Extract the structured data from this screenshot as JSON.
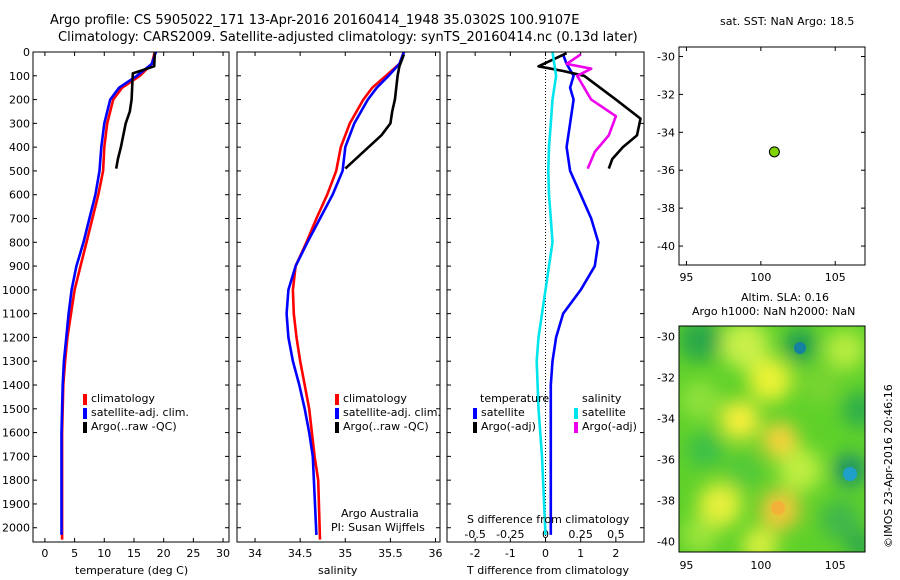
{
  "header": {
    "title": "Argo profile: CS 5905022_171 13-Apr-2016 20160414_1948 35.0302S 100.9107E",
    "subtitle": "Climatology: CARS2009. Satellite-adjusted climatology: synTS_20160414.nc (0.13d later)"
  },
  "watermark": "©IMOS 23-Apr-2016 20:46:16",
  "credit": {
    "line1": "Argo Australia",
    "line2": "PI: Susan Wijffels"
  },
  "colors": {
    "red": "#ff0000",
    "blue": "#0000ff",
    "black": "#000000",
    "cyan": "#00e5ee",
    "magenta": "#ee00ee",
    "float_marker": "#7fd400"
  },
  "chart_data": [
    {
      "type": "line",
      "id": "temperature",
      "xlabel": "temperature (deg C)",
      "ylabel": "",
      "xlim": [
        -2,
        31
      ],
      "ylim": [
        2060,
        0
      ],
      "xticks": [
        0,
        5,
        10,
        15,
        20,
        25,
        30
      ],
      "yticks": [
        0,
        100,
        200,
        300,
        400,
        500,
        600,
        700,
        800,
        900,
        1000,
        1100,
        1200,
        1300,
        1400,
        1500,
        1600,
        1700,
        1800,
        1900,
        2000
      ],
      "legend": [
        {
          "label": "climatology",
          "color": "#ff0000"
        },
        {
          "label": "satellite-adj. clim.",
          "color": "#0000ff"
        },
        {
          "label": "Argo(..raw -QC)",
          "color": "#000000"
        }
      ],
      "series": [
        {
          "name": "climatology",
          "color": "#ff0000",
          "x": [
            18.5,
            18,
            16,
            13,
            11.5,
            10.5,
            10,
            9.8,
            9,
            8,
            7,
            6,
            5,
            4.4,
            3.8,
            3.4,
            3.1,
            3,
            2.9,
            2.9
          ],
          "y": [
            0,
            50,
            100,
            150,
            200,
            300,
            400,
            500,
            600,
            700,
            800,
            900,
            1000,
            1100,
            1200,
            1300,
            1400,
            1500,
            1600,
            2050
          ]
        },
        {
          "name": "satellite-adj. clim.",
          "color": "#0000ff",
          "x": [
            18.7,
            18,
            15.5,
            12.5,
            11,
            10,
            9.5,
            9.2,
            8.5,
            7.5,
            6.5,
            5.3,
            4.5,
            4,
            3.6,
            3.2,
            3,
            2.9,
            2.8,
            2.8
          ],
          "y": [
            0,
            50,
            100,
            150,
            200,
            300,
            400,
            500,
            600,
            700,
            800,
            900,
            1000,
            1100,
            1200,
            1300,
            1400,
            1500,
            1600,
            2030
          ]
        },
        {
          "name": "Argo(..raw -QC)",
          "color": "#000000",
          "x": [
            18.5,
            18.4,
            14.8,
            14.6,
            14.3,
            13.6,
            12.8,
            12.3,
            12
          ],
          "y": [
            5,
            60,
            90,
            200,
            250,
            300,
            400,
            450,
            490
          ]
        }
      ]
    },
    {
      "type": "line",
      "id": "salinity",
      "xlabel": "salinity",
      "ylabel": "",
      "xlim": [
        33.8,
        36.05
      ],
      "ylim": [
        2060,
        0
      ],
      "xticks": [
        34,
        34.5,
        35,
        35.5,
        36
      ],
      "legend": [
        {
          "label": "climatology",
          "color": "#ff0000"
        },
        {
          "label": "satellite-adj. clim.",
          "color": "#0000ff"
        },
        {
          "label": "Argo(..raw -QC)",
          "color": "#000000"
        }
      ],
      "series": [
        {
          "name": "climatology",
          "color": "#ff0000",
          "x": [
            35.65,
            35.6,
            35.45,
            35.3,
            35.2,
            35.05,
            34.95,
            34.9,
            34.8,
            34.68,
            34.57,
            34.45,
            34.42,
            34.43,
            34.46,
            34.5,
            34.55,
            34.6,
            34.63,
            34.66,
            34.7,
            34.72
          ],
          "y": [
            0,
            50,
            100,
            150,
            200,
            300,
            400,
            500,
            600,
            700,
            800,
            900,
            1000,
            1100,
            1200,
            1300,
            1400,
            1500,
            1600,
            1700,
            1800,
            2050
          ]
        },
        {
          "name": "satellite-adj. clim.",
          "color": "#0000ff",
          "x": [
            35.65,
            35.6,
            35.48,
            35.35,
            35.25,
            35.1,
            35,
            34.97,
            34.86,
            34.72,
            34.58,
            34.45,
            34.37,
            34.35,
            34.37,
            34.42,
            34.49,
            34.55,
            34.6,
            34.64,
            34.68
          ],
          "y": [
            0,
            50,
            100,
            150,
            200,
            300,
            400,
            500,
            600,
            700,
            800,
            900,
            1000,
            1100,
            1200,
            1300,
            1400,
            1500,
            1600,
            1700,
            2030
          ]
        },
        {
          "name": "Argo(..raw -QC)",
          "color": "#000000",
          "x": [
            35.65,
            35.6,
            35.58,
            35.55,
            35.52,
            35.5,
            35.4,
            35.2,
            35
          ],
          "y": [
            10,
            60,
            100,
            200,
            250,
            300,
            350,
            420,
            490
          ]
        }
      ]
    },
    {
      "type": "line",
      "id": "difference",
      "xlabel": "T difference from climatology",
      "top_axis_label": "S difference from climatology",
      "ylabel": "",
      "xlim": [
        -2.8,
        2.8
      ],
      "ylim": [
        2060,
        0
      ],
      "xticks": [
        -2,
        -1,
        0,
        1,
        2
      ],
      "top_ticks": [
        {
          "label": "-0.5",
          "value": -2
        },
        {
          "label": "-0.25",
          "value": -1
        },
        {
          "label": "0",
          "value": 0
        },
        {
          "label": "0.25",
          "value": 1
        },
        {
          "label": "0.5",
          "value": 2
        }
      ],
      "legend_temperature_title": "temperature",
      "legend_salinity_title": "salinity",
      "legend": [
        {
          "label": "satellite",
          "color": "#0000ff",
          "group": "temperature"
        },
        {
          "label": "Argo(-adj)",
          "color": "#000000",
          "group": "temperature"
        },
        {
          "label": "satellite",
          "color": "#00e5ee",
          "group": "salinity"
        },
        {
          "label": "Argo(-adj)",
          "color": "#ee00ee",
          "group": "salinity"
        }
      ],
      "series": [
        {
          "name": "satellite T",
          "color": "#0000ff",
          "x": [
            0.5,
            0.6,
            0.8,
            0.7,
            0.8,
            0.7,
            0.6,
            0.7,
            1,
            1.3,
            1.5,
            1.4,
            1,
            0.5,
            0.3,
            0.2,
            0.15,
            0.15,
            0.15,
            0.15
          ],
          "y": [
            10,
            50,
            100,
            150,
            200,
            300,
            400,
            500,
            600,
            700,
            800,
            900,
            1000,
            1100,
            1200,
            1300,
            1400,
            1500,
            1700,
            2030
          ]
        },
        {
          "name": "Argo(-adj) T",
          "color": "#000000",
          "x": [
            0.6,
            -0.2,
            0.5,
            1.1,
            2,
            2.7,
            2.6,
            2.2,
            1.9,
            1.8
          ],
          "y": [
            5,
            60,
            80,
            100,
            200,
            280,
            350,
            400,
            450,
            490
          ]
        },
        {
          "name": "satellite S",
          "color": "#00e5ee",
          "x": [
            0.2,
            0.25,
            0.3,
            0.2,
            0.15,
            0.1,
            0.08,
            0.1,
            0.15,
            0.2,
            0.1,
            0,
            -0.1,
            -0.2,
            -0.25,
            -0.2,
            -0.1,
            0
          ],
          "y": [
            0,
            50,
            100,
            200,
            300,
            400,
            500,
            600,
            700,
            800,
            900,
            1000,
            1100,
            1200,
            1300,
            1500,
            1700,
            2030
          ]
        },
        {
          "name": "Argo(-adj) S",
          "color": "#ee00ee",
          "x": [
            1,
            0.6,
            1.3,
            0.9,
            1.3,
            2,
            1.8,
            1.4,
            1.2
          ],
          "y": [
            10,
            50,
            70,
            100,
            200,
            270,
            350,
            420,
            490
          ]
        }
      ]
    },
    {
      "type": "scatter",
      "id": "position",
      "title": "sat. SST: NaN Argo: 18.5",
      "xlim": [
        94.5,
        107
      ],
      "ylim": [
        -41,
        -29.5
      ],
      "xticks": [
        95,
        100,
        105
      ],
      "yticks": [
        -30,
        -32,
        -34,
        -36,
        -38,
        -40
      ],
      "points": [
        {
          "x": 100.91,
          "y": -35.03
        }
      ]
    },
    {
      "type": "heatmap",
      "id": "sla",
      "title": "Altim. SLA: 0.16",
      "subtitle": "Argo h1000: NaN h2000: NaN",
      "xlim": [
        94.5,
        107
      ],
      "ylim": [
        -40.5,
        -29.5
      ],
      "xticks": [
        95,
        100,
        105
      ],
      "yticks": [
        -30,
        -32,
        -34,
        -36,
        -38,
        -40
      ]
    }
  ]
}
